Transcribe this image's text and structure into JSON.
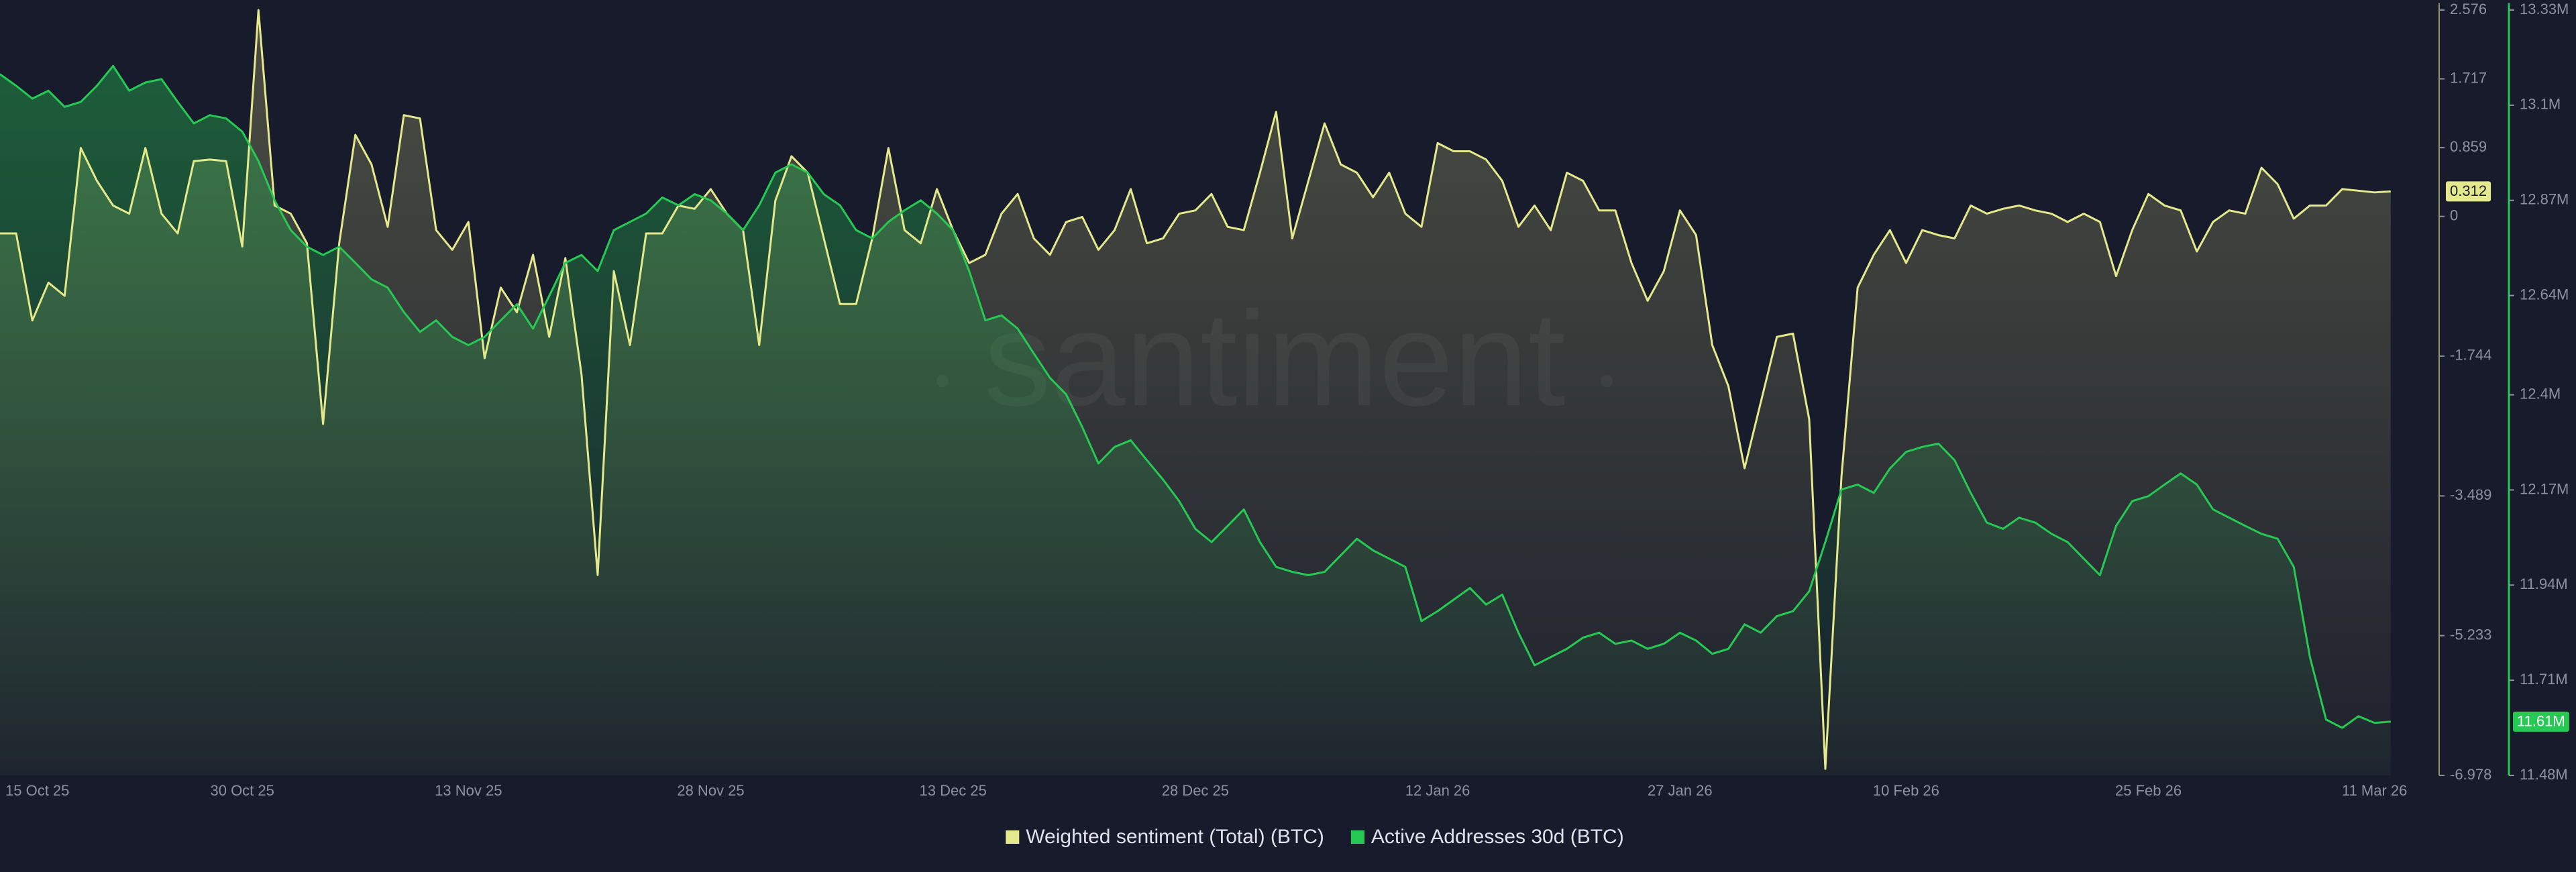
{
  "chart_data": {
    "type": "line",
    "watermark": "santiment",
    "categories": [
      "15 Oct 25",
      null,
      null,
      null,
      null,
      null,
      null,
      null,
      null,
      null,
      null,
      null,
      null,
      null,
      null,
      "30 Oct 25",
      null,
      null,
      null,
      null,
      null,
      null,
      null,
      null,
      null,
      null,
      null,
      null,
      null,
      "13 Nov 25",
      null,
      null,
      null,
      null,
      null,
      null,
      null,
      null,
      null,
      null,
      null,
      null,
      null,
      null,
      "28 Nov 25",
      null,
      null,
      null,
      null,
      null,
      null,
      null,
      null,
      null,
      null,
      null,
      null,
      null,
      null,
      "13 Dec 25",
      null,
      null,
      null,
      null,
      null,
      null,
      null,
      null,
      null,
      null,
      null,
      null,
      null,
      null,
      "28 Dec 25",
      null,
      null,
      null,
      null,
      null,
      null,
      null,
      null,
      null,
      null,
      null,
      null,
      null,
      null,
      "12 Jan 26",
      null,
      null,
      null,
      null,
      null,
      null,
      null,
      null,
      null,
      null,
      null,
      null,
      null,
      null,
      "27 Jan 26",
      null,
      null,
      null,
      null,
      null,
      null,
      null,
      null,
      null,
      null,
      null,
      null,
      null,
      "10 Feb 26",
      null,
      null,
      null,
      null,
      null,
      null,
      null,
      null,
      null,
      null,
      null,
      null,
      null,
      null,
      "25 Feb 26",
      null,
      null,
      null,
      null,
      null,
      null,
      null,
      null,
      null,
      null,
      null,
      null,
      null,
      "11 Mar 26",
      null
    ],
    "series": [
      {
        "name": "Weighted sentiment (Total) (BTC)",
        "color": "#e4ea8c",
        "axis": "y",
        "values": [
          -0.212,
          -0.212,
          -1.299,
          -0.827,
          -0.991,
          0.854,
          0.444,
          0.136,
          0.034,
          0.854,
          0.034,
          -0.212,
          0.69,
          0.71,
          0.69,
          -0.376,
          2.576,
          0.136,
          0.034,
          -0.335,
          -2.591,
          -0.335,
          1.018,
          0.649,
          -0.13,
          1.264,
          1.223,
          -0.171,
          -0.417,
          -0.069,
          -1.77,
          -0.889,
          -1.196,
          -0.479,
          -1.504,
          -0.52,
          -1.975,
          -4.477,
          -0.684,
          -1.606,
          -0.212,
          -0.212,
          0.136,
          0.095,
          0.341,
          0.034,
          -0.171,
          -1.606,
          0.198,
          0.751,
          0.546,
          -0.274,
          -1.094,
          -1.094,
          -0.274,
          0.854,
          -0.171,
          -0.335,
          0.341,
          -0.171,
          -0.581,
          -0.479,
          0.034,
          0.28,
          -0.274,
          -0.479,
          -0.069,
          -0.007,
          -0.417,
          -0.171,
          0.341,
          -0.335,
          -0.274,
          0.034,
          0.075,
          0.28,
          -0.13,
          -0.171,
          0.546,
          1.305,
          -0.274,
          0.444,
          1.161,
          0.649,
          0.546,
          0.239,
          0.546,
          0.034,
          -0.13,
          0.915,
          0.813,
          0.813,
          0.71,
          0.444,
          -0.13,
          0.136,
          -0.171,
          0.546,
          0.444,
          0.075,
          0.075,
          -0.581,
          -1.053,
          -0.684,
          0.075,
          -0.233,
          -1.606,
          -2.119,
          -3.144,
          -2.324,
          -1.504,
          -1.463,
          -2.529,
          -6.896,
          -3.247,
          -0.889,
          -0.479,
          -0.171,
          -0.581,
          -0.171,
          -0.233,
          -0.274,
          0.136,
          0.034,
          0.095,
          0.136,
          0.075,
          0.034,
          -0.069,
          0.034,
          -0.069,
          -0.745,
          -0.171,
          0.28,
          0.136,
          0.075,
          -0.438,
          -0.069,
          0.075,
          0.034,
          0.608,
          0.403,
          -0.028,
          0.136,
          0.136,
          0.341,
          0.321,
          0.3,
          0.312
        ]
      },
      {
        "name": "Active Addresses 30d (BTC)",
        "color": "#26c953",
        "axis": "y2",
        "last_value_label": "11.61M",
        "values": [
          13175000,
          13147000,
          13116000,
          13135000,
          13096000,
          13108000,
          13147000,
          13195000,
          13135000,
          13155000,
          13163000,
          13108000,
          13056000,
          13076000,
          13068000,
          13036000,
          12965000,
          12870000,
          12798000,
          12758000,
          12738000,
          12758000,
          12719000,
          12679000,
          12659000,
          12600000,
          12552000,
          12580000,
          12540000,
          12520000,
          12540000,
          12580000,
          12619000,
          12560000,
          12639000,
          12719000,
          12738000,
          12699000,
          12798000,
          12818000,
          12838000,
          12877000,
          12858000,
          12885000,
          12870000,
          12838000,
          12798000,
          12858000,
          12937000,
          12957000,
          12937000,
          12885000,
          12858000,
          12798000,
          12778000,
          12818000,
          12846000,
          12870000,
          12838000,
          12798000,
          12699000,
          12580000,
          12592000,
          12560000,
          12500000,
          12441000,
          12401000,
          12322000,
          12234000,
          12274000,
          12290000,
          12242000,
          12195000,
          12143000,
          12076000,
          12044000,
          12083000,
          12123000,
          12044000,
          11984000,
          11972000,
          11964000,
          11972000,
          12012000,
          12052000,
          12024000,
          12004000,
          11984000,
          11853000,
          11877000,
          11905000,
          11933000,
          11893000,
          11917000,
          11825000,
          11746000,
          11766000,
          11786000,
          11813000,
          11825000,
          11798000,
          11806000,
          11786000,
          11798000,
          11825000,
          11806000,
          11774000,
          11786000,
          11845000,
          11825000,
          11865000,
          11877000,
          11925000,
          12044000,
          12171000,
          12183000,
          12163000,
          12222000,
          12262000,
          12274000,
          12282000,
          12242000,
          12163000,
          12091000,
          12076000,
          12103000,
          12091000,
          12064000,
          12044000,
          12004000,
          11964000,
          12083000,
          12143000,
          12155000,
          12183000,
          12210000,
          12183000,
          12123000,
          12103000,
          12083000,
          12064000,
          12052000,
          11984000,
          11766000,
          11615000,
          11595000,
          11623000,
          11607000,
          11610000
        ]
      }
    ],
    "ylim": [
      -6.978,
      2.576
    ],
    "yticks": [
      2.576,
      1.717,
      0.859,
      0,
      -1.744,
      -3.489,
      -5.233,
      -6.978
    ],
    "y2lim": [
      11480000,
      13330000
    ],
    "y2ticks": [
      {
        "value": 13330000,
        "label": "13.33M"
      },
      {
        "value": 13100000,
        "label": "13.1M"
      },
      {
        "value": 12870000,
        "label": "12.87M"
      },
      {
        "value": 12640000,
        "label": "12.64M"
      },
      {
        "value": 12400000,
        "label": "12.4M"
      },
      {
        "value": 12170000,
        "label": "12.17M"
      },
      {
        "value": 11940000,
        "label": "11.94M"
      },
      {
        "value": 11710000,
        "label": "11.71M"
      },
      {
        "value": 11480000,
        "label": "11.48M"
      }
    ],
    "legend": "bottom",
    "grid": false
  }
}
